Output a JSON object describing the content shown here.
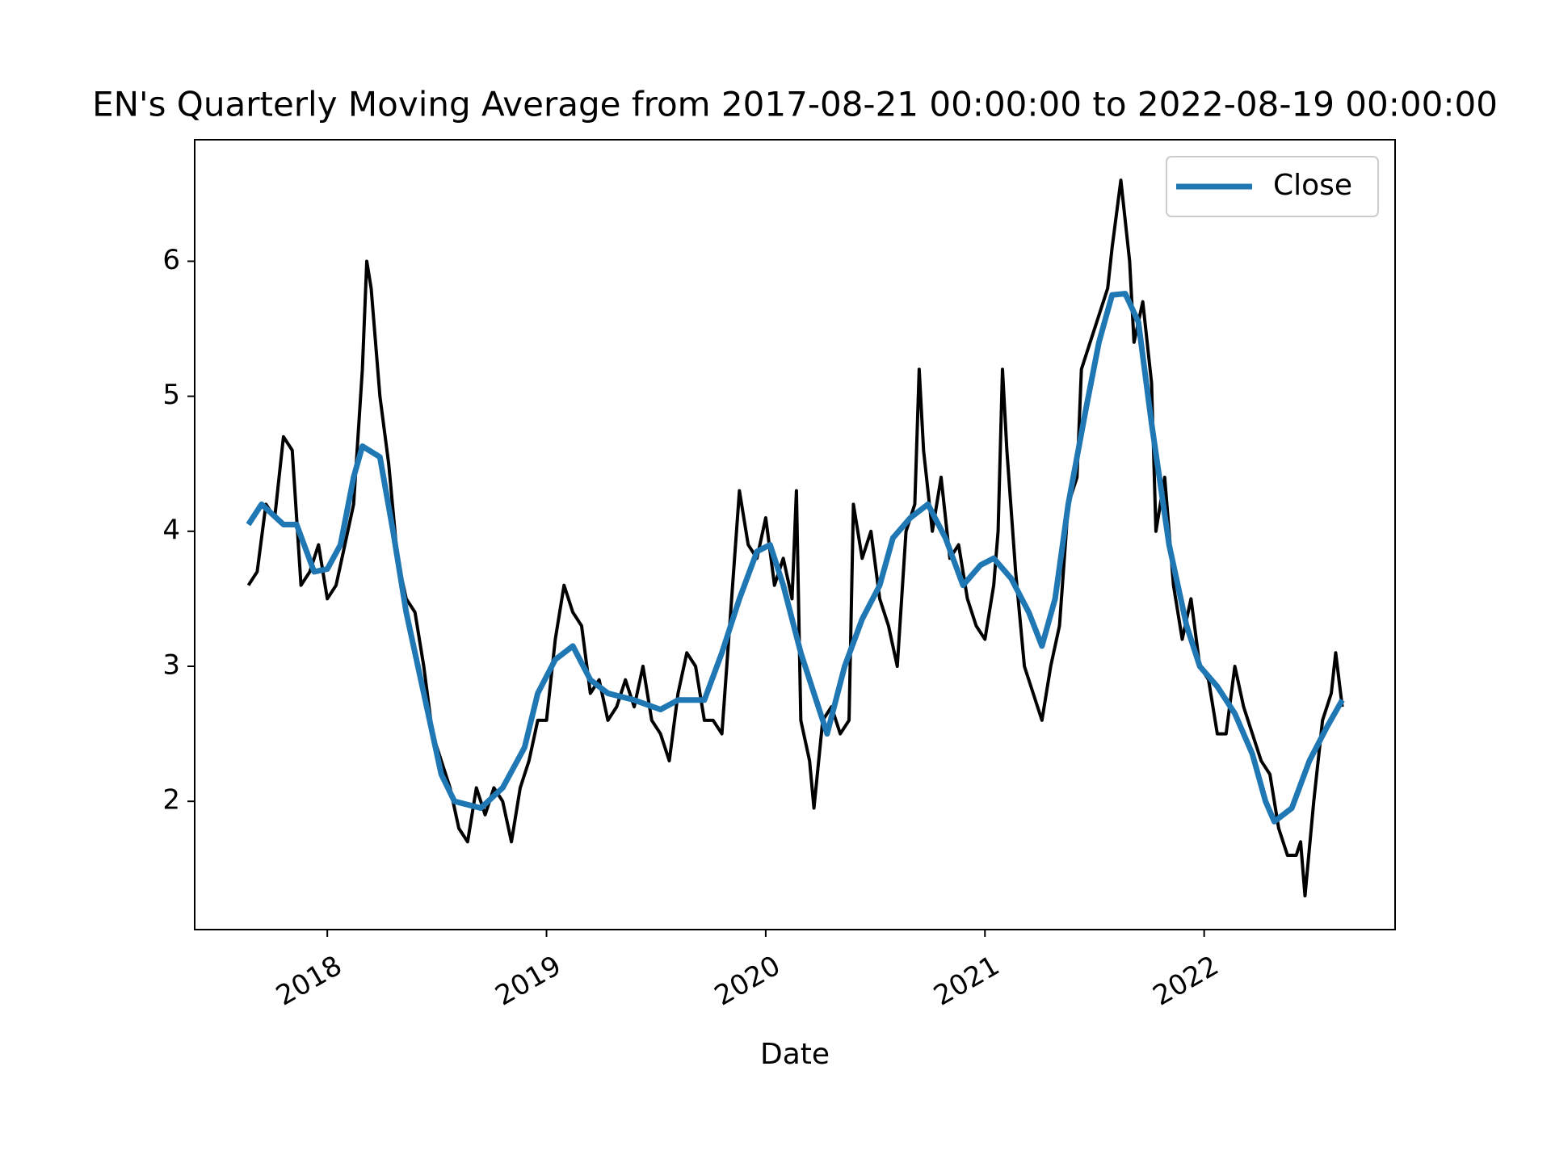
{
  "chart_data": {
    "type": "line",
    "title": "EN's Quarterly Moving Average from 2017-08-21 00:00:00 to 2022-08-19 00:00:00",
    "xlabel": "Date",
    "xlim": [
      2017.395,
      2022.871
    ],
    "xticks": [
      2018,
      2019,
      2020,
      2021,
      2022
    ],
    "ylim": [
      1.05,
      6.9
    ],
    "yticks": [
      2,
      3,
      4,
      5,
      6
    ],
    "legend": "upper right",
    "series": [
      {
        "color": "#000000",
        "x": [
          2017.64,
          2017.68,
          2017.72,
          2017.76,
          2017.8,
          2017.84,
          2017.88,
          2017.92,
          2017.96,
          2018.0,
          2018.04,
          2018.08,
          2018.12,
          2018.16,
          2018.18,
          2018.2,
          2018.24,
          2018.28,
          2018.32,
          2018.36,
          2018.4,
          2018.44,
          2018.48,
          2018.52,
          2018.56,
          2018.6,
          2018.64,
          2018.68,
          2018.72,
          2018.76,
          2018.8,
          2018.84,
          2018.88,
          2018.92,
          2018.96,
          2019.0,
          2019.04,
          2019.08,
          2019.12,
          2019.16,
          2019.2,
          2019.24,
          2019.28,
          2019.32,
          2019.36,
          2019.4,
          2019.44,
          2019.48,
          2019.52,
          2019.56,
          2019.6,
          2019.64,
          2019.68,
          2019.72,
          2019.76,
          2019.8,
          2019.84,
          2019.88,
          2019.92,
          2019.96,
          2020.0,
          2020.04,
          2020.08,
          2020.12,
          2020.14,
          2020.16,
          2020.2,
          2020.22,
          2020.26,
          2020.3,
          2020.34,
          2020.38,
          2020.4,
          2020.44,
          2020.48,
          2020.52,
          2020.56,
          2020.6,
          2020.64,
          2020.68,
          2020.7,
          2020.72,
          2020.76,
          2020.8,
          2020.84,
          2020.88,
          2020.92,
          2020.96,
          2021.0,
          2021.04,
          2021.06,
          2021.08,
          2021.1,
          2021.14,
          2021.18,
          2021.22,
          2021.26,
          2021.3,
          2021.34,
          2021.38,
          2021.42,
          2021.44,
          2021.48,
          2021.52,
          2021.56,
          2021.58,
          2021.62,
          2021.66,
          2021.68,
          2021.72,
          2021.76,
          2021.78,
          2021.82,
          2021.86,
          2021.9,
          2021.94,
          2021.98,
          2022.02,
          2022.06,
          2022.1,
          2022.14,
          2022.18,
          2022.22,
          2022.26,
          2022.3,
          2022.34,
          2022.38,
          2022.42,
          2022.44,
          2022.46,
          2022.5,
          2022.54,
          2022.58,
          2022.6,
          2022.63
        ],
        "values": [
          3.6,
          3.7,
          4.2,
          4.1,
          4.7,
          4.6,
          3.6,
          3.7,
          3.9,
          3.5,
          3.6,
          3.9,
          4.2,
          5.2,
          6.0,
          5.8,
          5.0,
          4.5,
          3.8,
          3.5,
          3.4,
          3.0,
          2.5,
          2.3,
          2.1,
          1.8,
          1.7,
          2.1,
          1.9,
          2.1,
          2.0,
          1.7,
          2.1,
          2.3,
          2.6,
          2.6,
          3.2,
          3.6,
          3.4,
          3.3,
          2.8,
          2.9,
          2.6,
          2.7,
          2.9,
          2.7,
          3.0,
          2.6,
          2.5,
          2.3,
          2.8,
          3.1,
          3.0,
          2.6,
          2.6,
          2.5,
          3.4,
          4.3,
          3.9,
          3.8,
          4.1,
          3.6,
          3.8,
          3.5,
          4.3,
          2.6,
          2.3,
          1.95,
          2.6,
          2.7,
          2.5,
          2.6,
          4.2,
          3.8,
          4.0,
          3.5,
          3.3,
          3.0,
          4.0,
          4.2,
          5.2,
          4.6,
          4.0,
          4.4,
          3.8,
          3.9,
          3.5,
          3.3,
          3.2,
          3.6,
          4.0,
          5.2,
          4.6,
          3.7,
          3.0,
          2.8,
          2.6,
          3.0,
          3.3,
          4.2,
          4.4,
          5.2,
          5.4,
          5.6,
          5.8,
          6.1,
          6.6,
          6.0,
          5.4,
          5.7,
          5.1,
          4.0,
          4.4,
          3.6,
          3.2,
          3.5,
          3.0,
          2.9,
          2.5,
          2.5,
          3.0,
          2.7,
          2.5,
          2.3,
          2.2,
          1.8,
          1.6,
          1.6,
          1.7,
          1.3,
          2.0,
          2.6,
          2.8,
          3.1,
          2.7
        ]
      },
      {
        "name": "Close",
        "color": "#1f77b4",
        "x": [
          2017.64,
          2017.7,
          2017.8,
          2017.86,
          2017.94,
          2018.0,
          2018.06,
          2018.12,
          2018.16,
          2018.24,
          2018.3,
          2018.36,
          2018.44,
          2018.52,
          2018.58,
          2018.7,
          2018.8,
          2018.9,
          2018.96,
          2019.04,
          2019.12,
          2019.2,
          2019.28,
          2019.4,
          2019.52,
          2019.6,
          2019.72,
          2019.8,
          2019.88,
          2019.96,
          2020.02,
          2020.08,
          2020.16,
          2020.22,
          2020.28,
          2020.36,
          2020.44,
          2020.52,
          2020.58,
          2020.66,
          2020.74,
          2020.82,
          2020.9,
          2020.98,
          2021.04,
          2021.12,
          2021.2,
          2021.26,
          2021.32,
          2021.38,
          2021.46,
          2021.52,
          2021.58,
          2021.64,
          2021.7,
          2021.76,
          2021.84,
          2021.92,
          2021.98,
          2022.06,
          2022.14,
          2022.22,
          2022.28,
          2022.32,
          2022.4,
          2022.48,
          2022.56,
          2022.63
        ],
        "values": [
          4.05,
          4.2,
          4.05,
          4.05,
          3.7,
          3.72,
          3.9,
          4.4,
          4.63,
          4.55,
          4.0,
          3.4,
          2.8,
          2.2,
          2.0,
          1.95,
          2.1,
          2.4,
          2.8,
          3.05,
          3.15,
          2.9,
          2.8,
          2.75,
          2.68,
          2.75,
          2.75,
          3.1,
          3.5,
          3.85,
          3.9,
          3.6,
          3.1,
          2.8,
          2.5,
          3.0,
          3.35,
          3.6,
          3.95,
          4.1,
          4.2,
          3.95,
          3.6,
          3.75,
          3.8,
          3.65,
          3.4,
          3.15,
          3.5,
          4.2,
          4.9,
          5.4,
          5.75,
          5.76,
          5.55,
          4.8,
          3.9,
          3.3,
          3.0,
          2.85,
          2.65,
          2.35,
          2.0,
          1.85,
          1.95,
          2.3,
          2.55,
          2.75
        ]
      }
    ]
  }
}
